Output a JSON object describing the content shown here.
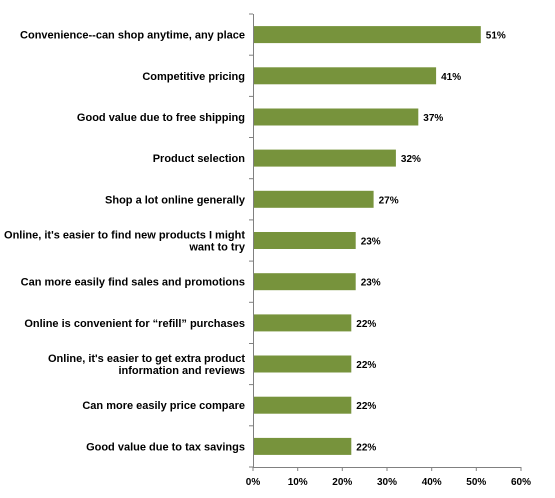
{
  "chart_data": {
    "type": "bar",
    "orientation": "horizontal",
    "categories": [
      [
        "Convenience--can shop anytime, any place"
      ],
      [
        "Competitive pricing"
      ],
      [
        "Good value due to free shipping"
      ],
      [
        "Product selection"
      ],
      [
        "Shop a lot online generally"
      ],
      [
        "Online, it's easier to find new products I might",
        "want to try"
      ],
      [
        "Can more easily find sales and promotions"
      ],
      [
        "Online is convenient for “refill” purchases"
      ],
      [
        "Online, it's easier to get extra product",
        "information and reviews"
      ],
      [
        "Can more easily price compare"
      ],
      [
        "Good value due to tax savings"
      ]
    ],
    "values": [
      51,
      41,
      37,
      32,
      27,
      23,
      23,
      22,
      22,
      22,
      22
    ],
    "data_labels": [
      "51%",
      "41%",
      "37%",
      "32%",
      "27%",
      "23%",
      "23%",
      "22%",
      "22%",
      "22%",
      "22%"
    ],
    "xlim": [
      0,
      60
    ],
    "xticks": [
      0,
      10,
      20,
      30,
      40,
      50,
      60
    ],
    "xtick_labels": [
      "0%",
      "10%",
      "20%",
      "30%",
      "40%",
      "50%",
      "60%"
    ],
    "grid": false,
    "legend": "none",
    "bar_color": "#77933C",
    "axis_color": "#808080",
    "title": "",
    "xlabel": "",
    "ylabel": ""
  }
}
